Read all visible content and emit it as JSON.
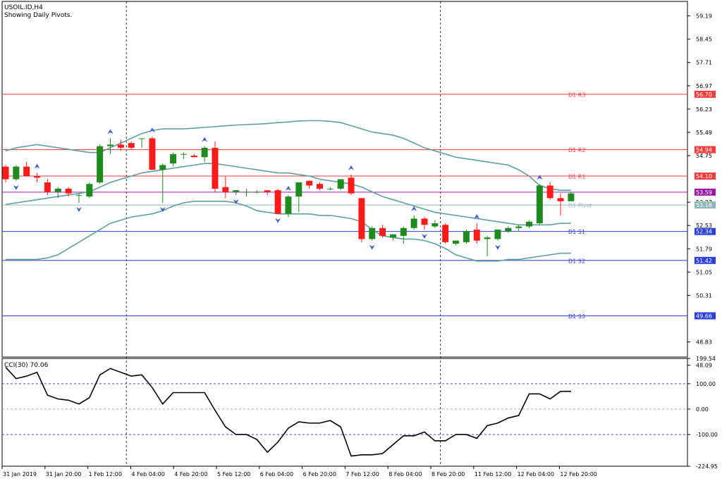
{
  "header": {
    "symbol": "USOIL.ID,H4",
    "subtitle": "Showing Daily Pivots."
  },
  "colors": {
    "bull": "#1f8b1f",
    "bear": "#ff1a1a",
    "band": "#5f9ea0",
    "resistance": "#ff3b3b",
    "pivot_s": "#2c3fd8",
    "pivot_p": "#8fb7b7",
    "close_line": "#9a1aa6",
    "arrow": "#3d5ccc",
    "cci_line": "#000000",
    "cci_levels": "#3a4ad0"
  },
  "chart_data": [
    {
      "type": "candlestick",
      "title": "USOIL.ID,H4",
      "subtitle": "Showing Daily Pivots.",
      "ylim": [
        48.35,
        59.65
      ],
      "y_ticks": [
        "59.19",
        "58.45",
        "57.71",
        "56.97",
        "56.23",
        "55.49",
        "54.75",
        "53.27",
        "52.53",
        "51.79",
        "51.05",
        "50.31",
        "48.83",
        "48.09"
      ],
      "x_ticks": [
        "31 Jan 2019",
        "31 Jan 20:00",
        "1 Feb 12:00",
        "4 Feb 04:00",
        "4 Feb 20:00",
        "5 Feb 12:00",
        "6 Feb 04:00",
        "6 Feb 20:00",
        "7 Feb 12:00",
        "8 Feb 04:00",
        "8 Feb 20:00",
        "11 Feb 12:00",
        "12 Feb 04:00",
        "12 Feb 20:00"
      ],
      "candles": [
        [
          54.4,
          54.45,
          53.9,
          54.0
        ],
        [
          54.0,
          54.45,
          53.95,
          54.4
        ],
        [
          54.4,
          54.55,
          54.1,
          54.1
        ],
        [
          54.1,
          54.2,
          53.9,
          54.05
        ],
        [
          53.9,
          54.0,
          53.5,
          53.6
        ],
        [
          53.6,
          53.75,
          53.4,
          53.7
        ],
        [
          53.7,
          53.75,
          53.45,
          53.55
        ],
        [
          53.5,
          53.55,
          53.25,
          53.5
        ],
        [
          53.45,
          53.9,
          53.4,
          53.85
        ],
        [
          53.9,
          55.1,
          53.85,
          55.05
        ],
        [
          55.05,
          55.3,
          54.8,
          55.1
        ],
        [
          55.1,
          55.25,
          54.9,
          55.0
        ],
        [
          55.15,
          55.2,
          54.95,
          55.0
        ],
        [
          55.3,
          55.3,
          55.0,
          55.3
        ],
        [
          55.3,
          55.35,
          54.3,
          54.3
        ],
        [
          54.3,
          54.5,
          53.25,
          54.45
        ],
        [
          54.5,
          54.85,
          54.4,
          54.8
        ],
        [
          54.8,
          54.85,
          54.65,
          54.8
        ],
        [
          54.75,
          54.8,
          54.7,
          54.7
        ],
        [
          54.7,
          55.05,
          54.55,
          55.0
        ],
        [
          55.0,
          55.2,
          53.6,
          53.7
        ],
        [
          53.75,
          54.1,
          53.4,
          53.6
        ],
        [
          53.6,
          53.65,
          53.5,
          53.65
        ],
        [
          53.6,
          53.7,
          53.45,
          53.6
        ],
        [
          53.6,
          53.65,
          53.55,
          53.6
        ],
        [
          53.65,
          53.65,
          53.5,
          53.6
        ],
        [
          53.65,
          53.7,
          52.9,
          52.9
        ],
        [
          52.9,
          53.5,
          52.8,
          53.45
        ],
        [
          53.45,
          53.9,
          52.95,
          53.9
        ],
        [
          53.95,
          53.95,
          53.7,
          53.8
        ],
        [
          53.85,
          53.9,
          53.65,
          53.7
        ],
        [
          53.7,
          53.75,
          53.65,
          53.7
        ],
        [
          53.7,
          54.0,
          53.65,
          54.0
        ],
        [
          54.05,
          54.15,
          53.5,
          53.55
        ],
        [
          53.4,
          53.4,
          52.0,
          52.1
        ],
        [
          52.1,
          52.5,
          52.05,
          52.45
        ],
        [
          52.45,
          52.55,
          52.15,
          52.2
        ],
        [
          52.15,
          52.25,
          52.05,
          52.25
        ],
        [
          52.2,
          52.5,
          51.95,
          52.45
        ],
        [
          52.45,
          52.85,
          52.4,
          52.75
        ],
        [
          52.75,
          52.8,
          52.4,
          52.55
        ],
        [
          52.5,
          52.7,
          52.45,
          52.6
        ],
        [
          52.55,
          52.6,
          51.95,
          52.0
        ],
        [
          51.95,
          52.05,
          51.9,
          52.05
        ],
        [
          52.0,
          52.4,
          51.95,
          52.35
        ],
        [
          52.4,
          52.6,
          51.95,
          52.05
        ],
        [
          52.1,
          52.2,
          51.55,
          52.15
        ],
        [
          52.1,
          52.4,
          52.05,
          52.4
        ],
        [
          52.35,
          52.5,
          52.3,
          52.45
        ],
        [
          52.45,
          52.55,
          52.35,
          52.5
        ],
        [
          52.5,
          52.7,
          52.45,
          52.65
        ],
        [
          52.6,
          53.85,
          52.55,
          53.8
        ],
        [
          53.8,
          53.9,
          53.35,
          53.4
        ],
        [
          53.4,
          53.55,
          52.85,
          53.3
        ],
        [
          53.3,
          53.6,
          53.3,
          53.55
        ]
      ],
      "bollinger_upper": [
        54.9,
        55.0,
        55.05,
        55.1,
        55.05,
        55.0,
        54.95,
        54.9,
        54.85,
        54.85,
        55.0,
        55.15,
        55.3,
        55.45,
        55.55,
        55.6,
        55.6,
        55.6,
        55.62,
        55.65,
        55.67,
        55.7,
        55.72,
        55.74,
        55.75,
        55.77,
        55.8,
        55.82,
        55.85,
        55.86,
        55.86,
        55.84,
        55.8,
        55.7,
        55.6,
        55.5,
        55.45,
        55.4,
        55.3,
        55.15,
        55.0,
        54.9,
        54.8,
        54.7,
        54.65,
        54.6,
        54.55,
        54.5,
        54.45,
        54.3,
        54.1,
        53.8,
        53.7,
        53.65,
        53.65
      ],
      "bollinger_middle": [
        53.2,
        53.25,
        53.3,
        53.35,
        53.4,
        53.45,
        53.5,
        53.55,
        53.6,
        53.75,
        53.9,
        54.0,
        54.1,
        54.2,
        54.25,
        54.3,
        54.35,
        54.4,
        54.45,
        54.5,
        54.5,
        54.45,
        54.4,
        54.35,
        54.3,
        54.25,
        54.2,
        54.2,
        54.15,
        54.1,
        54.0,
        53.95,
        53.9,
        53.85,
        53.75,
        53.6,
        53.45,
        53.35,
        53.25,
        53.15,
        53.05,
        52.95,
        52.9,
        52.85,
        52.8,
        52.75,
        52.7,
        52.65,
        52.6,
        52.55,
        52.55,
        52.55,
        52.55,
        52.6,
        52.6
      ],
      "bollinger_lower": [
        51.45,
        51.45,
        51.45,
        51.45,
        51.5,
        51.6,
        51.8,
        52.0,
        52.2,
        52.4,
        52.6,
        52.7,
        52.8,
        52.85,
        52.9,
        53.0,
        53.15,
        53.25,
        53.3,
        53.3,
        53.3,
        53.3,
        53.25,
        53.15,
        53.0,
        52.95,
        52.9,
        52.9,
        52.9,
        52.9,
        52.85,
        52.85,
        52.8,
        52.75,
        52.65,
        52.4,
        52.2,
        52.15,
        52.1,
        52.1,
        52.05,
        51.95,
        51.8,
        51.6,
        51.5,
        51.4,
        51.4,
        51.4,
        51.45,
        51.45,
        51.5,
        51.55,
        51.6,
        51.65,
        51.65
      ],
      "pivot_levels": [
        {
          "label": "D1 R3",
          "value": 56.7,
          "tag": "56.70"
        },
        {
          "label": "D1 R2",
          "value": 54.94,
          "tag": "54.94"
        },
        {
          "label": "D1 R1",
          "value": 54.1,
          "tag": "54.10"
        },
        {
          "label": "D1 Pivot",
          "value": 53.18,
          "tag": "53.18"
        },
        {
          "label": "D1 S1",
          "value": 52.34,
          "tag": "52.34"
        },
        {
          "label": "D1 S2",
          "value": 51.42,
          "tag": "51.42"
        },
        {
          "label": "D1 S3",
          "value": 49.66,
          "tag": "49.66"
        }
      ],
      "last_price": {
        "value": 53.59,
        "tag": "53.59"
      },
      "fractals_up": [
        3,
        10,
        14,
        19,
        27,
        33,
        39,
        45,
        51
      ],
      "fractals_down": [
        1,
        7,
        15,
        22,
        26,
        35,
        40,
        47
      ],
      "period_separators": [
        12,
        42
      ]
    },
    {
      "type": "line",
      "title": "CCI(30) 70.06",
      "ylim": [
        -224.95,
        199.54
      ],
      "y_ticks": [
        "199.54",
        "100.00",
        "0.00",
        "-100.00",
        "-224.95"
      ],
      "levels": [
        100,
        0,
        -100
      ],
      "values": [
        165,
        120,
        130,
        145,
        55,
        40,
        35,
        20,
        45,
        135,
        160,
        145,
        130,
        135,
        85,
        20,
        65,
        65,
        65,
        65,
        -5,
        -70,
        -100,
        -100,
        -120,
        -170,
        -130,
        -75,
        -50,
        -55,
        -55,
        -45,
        -70,
        -185,
        -180,
        -180,
        -175,
        -140,
        -105,
        -105,
        -90,
        -125,
        -125,
        -100,
        -100,
        -115,
        -65,
        -55,
        -35,
        -25,
        60,
        60,
        40,
        70,
        70
      ]
    }
  ]
}
